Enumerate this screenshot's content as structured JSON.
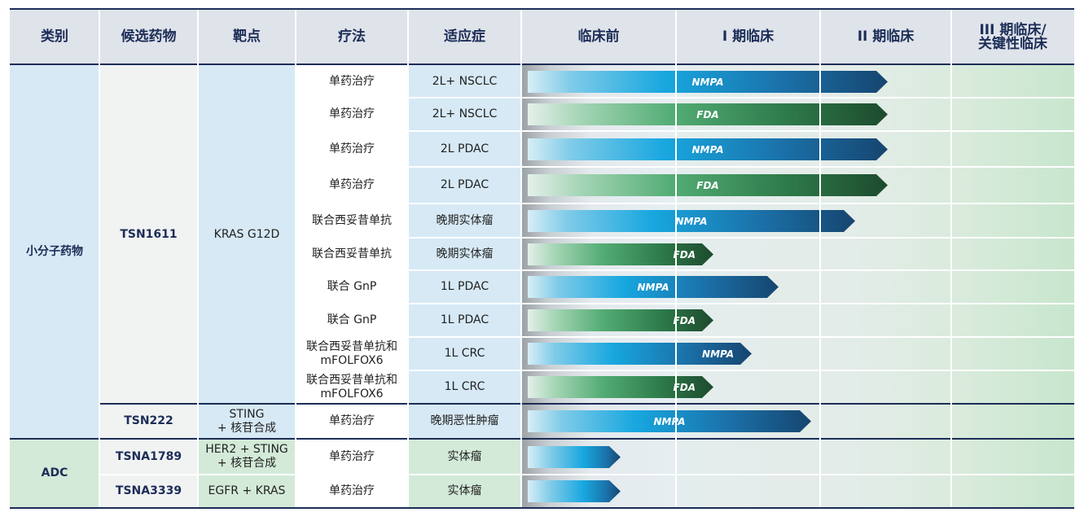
{
  "header": {
    "category": "类别",
    "drug": "候选药物",
    "target": "靶点",
    "therapy": "疗法",
    "indication": "适应症",
    "preclinical": "临床前",
    "phase1": "I 期临床",
    "phase2": "II 期临床",
    "phase3_line1": "III 期临床/",
    "phase3_line2": "关键性临床"
  },
  "categories": {
    "small_molecule": "小分子药物",
    "adc": "ADC"
  },
  "drugs": {
    "tsn1611": "TSN1611",
    "tsn222": "TSN222",
    "tsna1789": "TSNA1789",
    "tsna3339": "TSNA3339"
  },
  "targets": {
    "tsn1611": "KRAS G12D",
    "tsn222_line1": "STING",
    "tsn222_line2": "+ 核苷合成",
    "tsna1789_line1": "HER2 + STING",
    "tsna1789_line2": "+ 核苷合成",
    "tsna3339": "EGFR + KRAS"
  },
  "rows": [
    {
      "therapy": "单药治疗",
      "indication": "2L+ NSCLC",
      "bar_label": "NMPA",
      "bar_color": "blue",
      "progress": 0.66
    },
    {
      "therapy": "单药治疗",
      "indication": "2L+ NSCLC",
      "bar_label": "FDA",
      "bar_color": "green",
      "progress": 0.66
    },
    {
      "therapy": "单药治疗",
      "indication": "2L PDAC",
      "bar_label": "NMPA",
      "bar_color": "blue",
      "progress": 0.66
    },
    {
      "therapy": "单药治疗",
      "indication": "2L PDAC",
      "bar_label": "FDA",
      "bar_color": "green",
      "progress": 0.66
    },
    {
      "therapy": "联合西妥昔单抗",
      "indication": "晚期实体瘤",
      "bar_label": "NMPA",
      "bar_color": "blue",
      "progress": 0.6
    },
    {
      "therapy": "联合西妥昔单抗",
      "indication": "晚期实体瘤",
      "bar_label": "FDA",
      "bar_color": "green",
      "progress": 0.34
    },
    {
      "therapy": "联合 GnP",
      "indication": "1L PDAC",
      "bar_label": "NMPA",
      "bar_color": "blue",
      "progress": 0.46
    },
    {
      "therapy": "联合 GnP",
      "indication": "1L PDAC",
      "bar_label": "FDA",
      "bar_color": "green",
      "progress": 0.34
    },
    {
      "therapy_line1": "联合西妥昔单抗和",
      "therapy_line2": "mFOLFOX6",
      "indication": "1L CRC",
      "bar_label": "NMPA",
      "bar_color": "blue",
      "progress": 0.41
    },
    {
      "therapy_line1": "联合西妥昔单抗和",
      "therapy_line2": "mFOLFOX6",
      "indication": "1L CRC",
      "bar_label": "FDA",
      "bar_color": "green",
      "progress": 0.34
    },
    {
      "therapy": "单药治疗",
      "indication": "晚期恶性肿瘤",
      "bar_label": "NMPA",
      "bar_color": "blue",
      "progress": 0.52
    },
    {
      "therapy": "单药治疗",
      "indication": "实体瘤",
      "bar_label": "",
      "bar_color": "blue",
      "progress": 0.17
    },
    {
      "therapy": "单药治疗",
      "indication": "实体瘤",
      "bar_label": "",
      "bar_color": "blue",
      "progress": 0.17
    }
  ]
}
